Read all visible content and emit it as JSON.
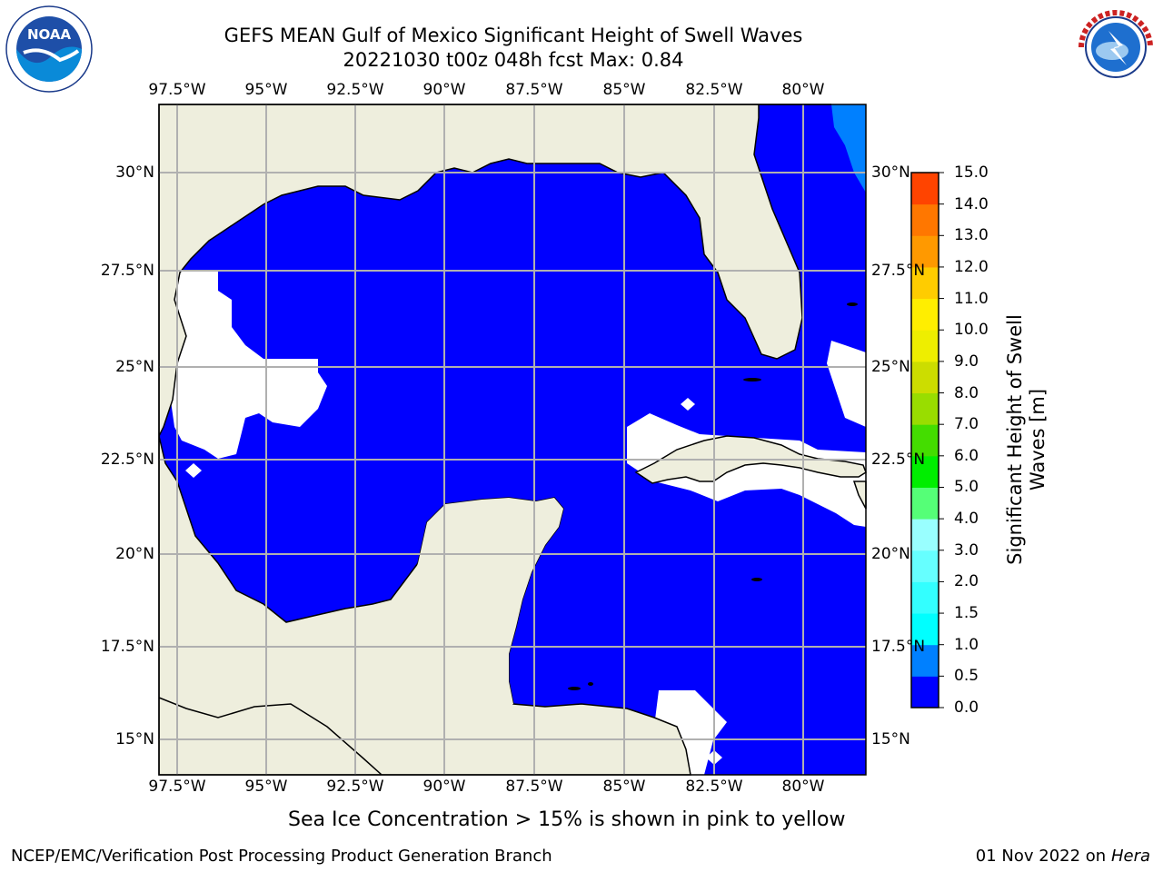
{
  "header": {
    "title_line1": "GEFS MEAN Gulf of Mexico Significant Height of Swell Waves",
    "title_line2": "20221030 t00z 048h fcst   Max: 0.84"
  },
  "logos": {
    "noaa_text": "NOAA",
    "noaa_ring_text": "NATIONAL OCEANIC AND ATMOSPHERIC ADMINISTRATION · U.S. DEPARTMENT OF COMMERCE",
    "nws_ring_text": "NATIONAL WEATHER SERVICE"
  },
  "map": {
    "lon_ticks": [
      "97.5°W",
      "95°W",
      "92.5°W",
      "90°W",
      "87.5°W",
      "85°W",
      "82.5°W",
      "80°W"
    ],
    "lat_ticks": [
      "30°N",
      "27.5°N",
      "25°N",
      "22.5°N",
      "20°N",
      "17.5°N",
      "15°N"
    ],
    "colors": {
      "land": "#eeeedd",
      "ocean_low": "#0000ff",
      "ocean_mid": "#0080ff",
      "no_data": "#ffffff",
      "grid": "#b0b0b0"
    }
  },
  "colorbar": {
    "title": "Significant Height of Swell Waves [m]",
    "tick_labels": [
      "0.0",
      "0.5",
      "1.0",
      "1.5",
      "2.0",
      "3.0",
      "4.0",
      "5.0",
      "6.0",
      "7.0",
      "8.0",
      "9.0",
      "10.0",
      "11.0",
      "12.0",
      "13.0",
      "14.0",
      "15.0"
    ],
    "colors": [
      "#0000ff",
      "#0080ff",
      "#00ffff",
      "#33ffff",
      "#66ffff",
      "#99ffff",
      "#55ff77",
      "#00ee00",
      "#44dd00",
      "#99dd00",
      "#ccdd00",
      "#eeee00",
      "#ffee00",
      "#ffcc00",
      "#ff9900",
      "#ff7700",
      "#ff4400",
      "#ff1100"
    ]
  },
  "caption": "Sea Ice Concentration > 15% is shown in pink to yellow",
  "footer": {
    "left": "NCEP/EMC/Verification Post Processing Product Generation Branch",
    "date": "01 Nov 2022 on",
    "host": "Hera"
  }
}
